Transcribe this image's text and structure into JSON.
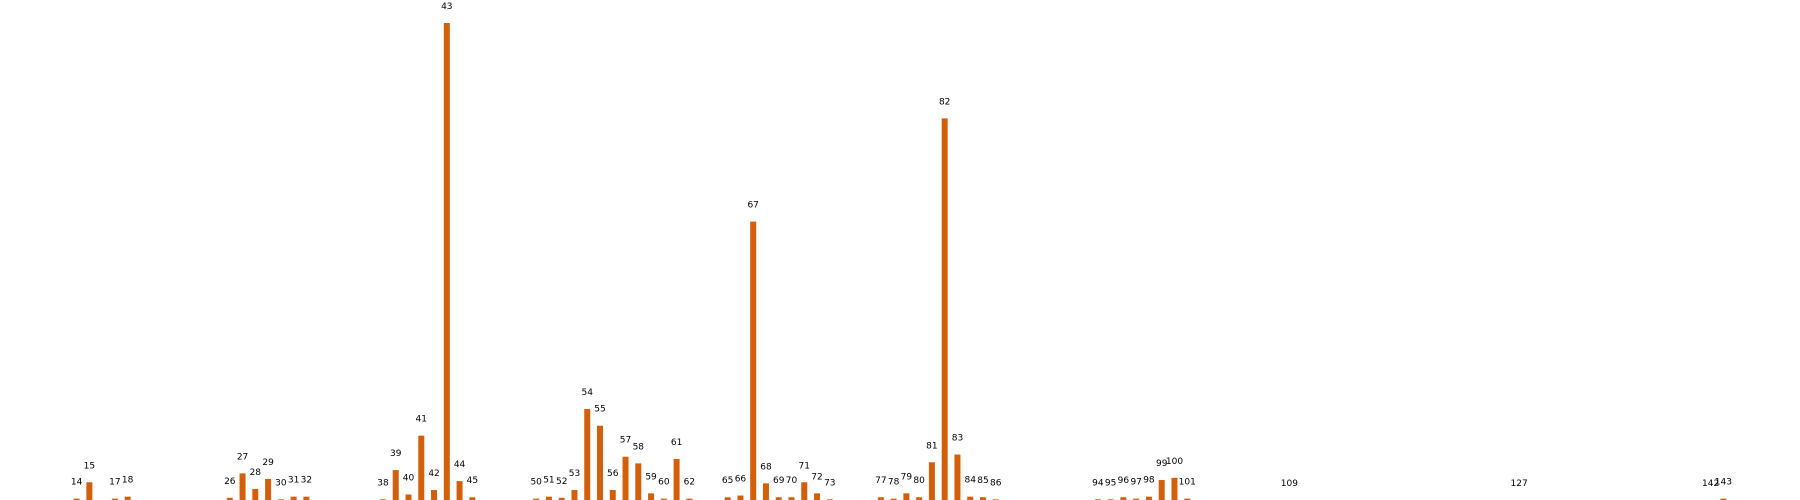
{
  "chart_data": {
    "type": "bar",
    "title": "",
    "xlabel": "",
    "ylabel": "",
    "axes_visible": false,
    "grid": false,
    "bar_color": "#d35f0b",
    "ylim": [
      0,
      43
    ],
    "xlim": [
      8,
      149
    ],
    "points": [
      {
        "x": 14,
        "y": 0.12
      },
      {
        "x": 15,
        "y": 1.6
      },
      {
        "x": 17,
        "y": 0.12
      },
      {
        "x": 18,
        "y": 0.3
      },
      {
        "x": 26,
        "y": 0.2
      },
      {
        "x": 27,
        "y": 2.4
      },
      {
        "x": 28,
        "y": 1.0
      },
      {
        "x": 29,
        "y": 1.9
      },
      {
        "x": 30,
        "y": 0.06
      },
      {
        "x": 31,
        "y": 0.3
      },
      {
        "x": 32,
        "y": 0.3
      },
      {
        "x": 38,
        "y": 0.06
      },
      {
        "x": 39,
        "y": 2.7
      },
      {
        "x": 40,
        "y": 0.5
      },
      {
        "x": 41,
        "y": 5.8
      },
      {
        "x": 42,
        "y": 0.9
      },
      {
        "x": 43,
        "y": 43
      },
      {
        "x": 44,
        "y": 1.7
      },
      {
        "x": 45,
        "y": 0.25
      },
      {
        "x": 50,
        "y": 0.12
      },
      {
        "x": 51,
        "y": 0.3
      },
      {
        "x": 52,
        "y": 0.2
      },
      {
        "x": 53,
        "y": 0.9
      },
      {
        "x": 54,
        "y": 8.2
      },
      {
        "x": 55,
        "y": 6.7
      },
      {
        "x": 56,
        "y": 0.9
      },
      {
        "x": 57,
        "y": 3.9
      },
      {
        "x": 58,
        "y": 3.3
      },
      {
        "x": 59,
        "y": 0.6
      },
      {
        "x": 60,
        "y": 0.12
      },
      {
        "x": 61,
        "y": 3.7
      },
      {
        "x": 62,
        "y": 0.12
      },
      {
        "x": 65,
        "y": 0.25
      },
      {
        "x": 66,
        "y": 0.4
      },
      {
        "x": 67,
        "y": 25.1
      },
      {
        "x": 68,
        "y": 1.5
      },
      {
        "x": 69,
        "y": 0.25
      },
      {
        "x": 70,
        "y": 0.25
      },
      {
        "x": 71,
        "y": 1.6
      },
      {
        "x": 72,
        "y": 0.6
      },
      {
        "x": 73,
        "y": 0.06
      },
      {
        "x": 77,
        "y": 0.25
      },
      {
        "x": 78,
        "y": 0.12
      },
      {
        "x": 79,
        "y": 0.6
      },
      {
        "x": 80,
        "y": 0.25
      },
      {
        "x": 81,
        "y": 3.4
      },
      {
        "x": 82,
        "y": 34.4
      },
      {
        "x": 83,
        "y": 4.1
      },
      {
        "x": 84,
        "y": 0.3
      },
      {
        "x": 85,
        "y": 0.25
      },
      {
        "x": 86,
        "y": 0.06
      },
      {
        "x": 94,
        "y": 0.06
      },
      {
        "x": 95,
        "y": 0.06
      },
      {
        "x": 96,
        "y": 0.25
      },
      {
        "x": 97,
        "y": 0.12
      },
      {
        "x": 98,
        "y": 0.3
      },
      {
        "x": 99,
        "y": 1.8
      },
      {
        "x": 100,
        "y": 2.0
      },
      {
        "x": 101,
        "y": 0.12
      },
      {
        "x": 109,
        "y": 0.0
      },
      {
        "x": 127,
        "y": 0.0
      },
      {
        "x": 142,
        "y": 0.0
      },
      {
        "x": 143,
        "y": 0.12
      }
    ]
  }
}
